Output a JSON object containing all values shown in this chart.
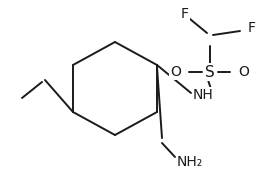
{
  "background_color": "#ffffff",
  "line_color": "#1a1a1a",
  "figsize": [
    2.66,
    1.79
  ],
  "dpi": 100,
  "xlim": [
    0,
    266
  ],
  "ylim": [
    0,
    179
  ]
}
